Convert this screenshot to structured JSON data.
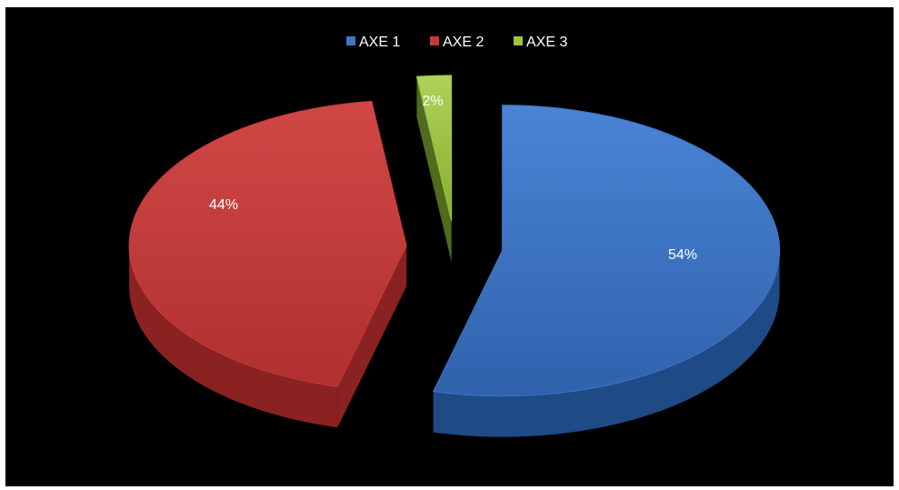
{
  "chart_data": {
    "type": "pie",
    "style": "3d-exploded",
    "legend_position": "top",
    "series": [
      {
        "name": "AXE 1",
        "value": 54,
        "label": "54%",
        "color": "#3E76C4",
        "side_color": "#1E4A86"
      },
      {
        "name": "AXE 2",
        "value": 44,
        "label": "44%",
        "color": "#C43B3A",
        "side_color": "#8A2221"
      },
      {
        "name": "AXE 3",
        "value": 2,
        "label": "2%",
        "color": "#9DC43F",
        "side_color": "#4E6B1E"
      }
    ]
  }
}
